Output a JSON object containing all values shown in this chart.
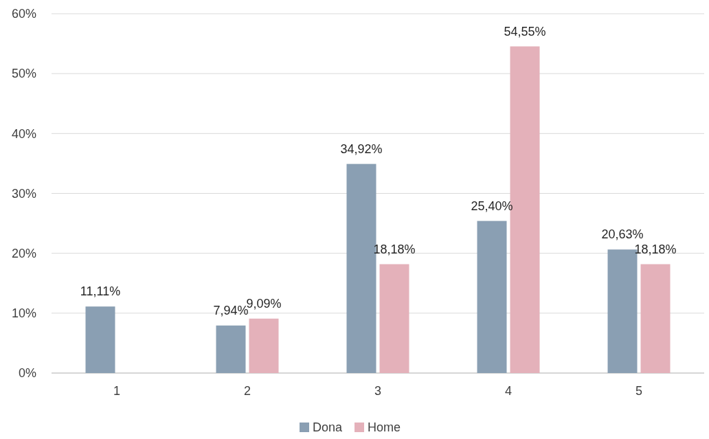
{
  "chart_data": {
    "type": "bar",
    "categories": [
      "1",
      "2",
      "3",
      "4",
      "5"
    ],
    "series": [
      {
        "name": "Dona",
        "color": "#8a9fb3",
        "values": [
          11.11,
          7.94,
          34.92,
          25.4,
          20.63
        ],
        "value_labels": [
          "11,11%",
          "7,94%",
          "34,92%",
          "25,40%",
          "20,63%"
        ]
      },
      {
        "name": "Home",
        "color": "#e4b1ba",
        "values": [
          null,
          9.09,
          18.18,
          54.55,
          18.18
        ],
        "value_labels": [
          null,
          "9,09%",
          "18,18%",
          "54,55%",
          "18,18%"
        ]
      }
    ],
    "ylim": [
      0,
      60
    ],
    "yticks": [
      {
        "value": 0,
        "label": "0%"
      },
      {
        "value": 10,
        "label": "10%"
      },
      {
        "value": 20,
        "label": "20%"
      },
      {
        "value": 30,
        "label": "30%"
      },
      {
        "value": 40,
        "label": "40%"
      },
      {
        "value": 50,
        "label": "50%"
      },
      {
        "value": 60,
        "label": "60%"
      }
    ],
    "grid": "y",
    "legend": "bottom"
  }
}
